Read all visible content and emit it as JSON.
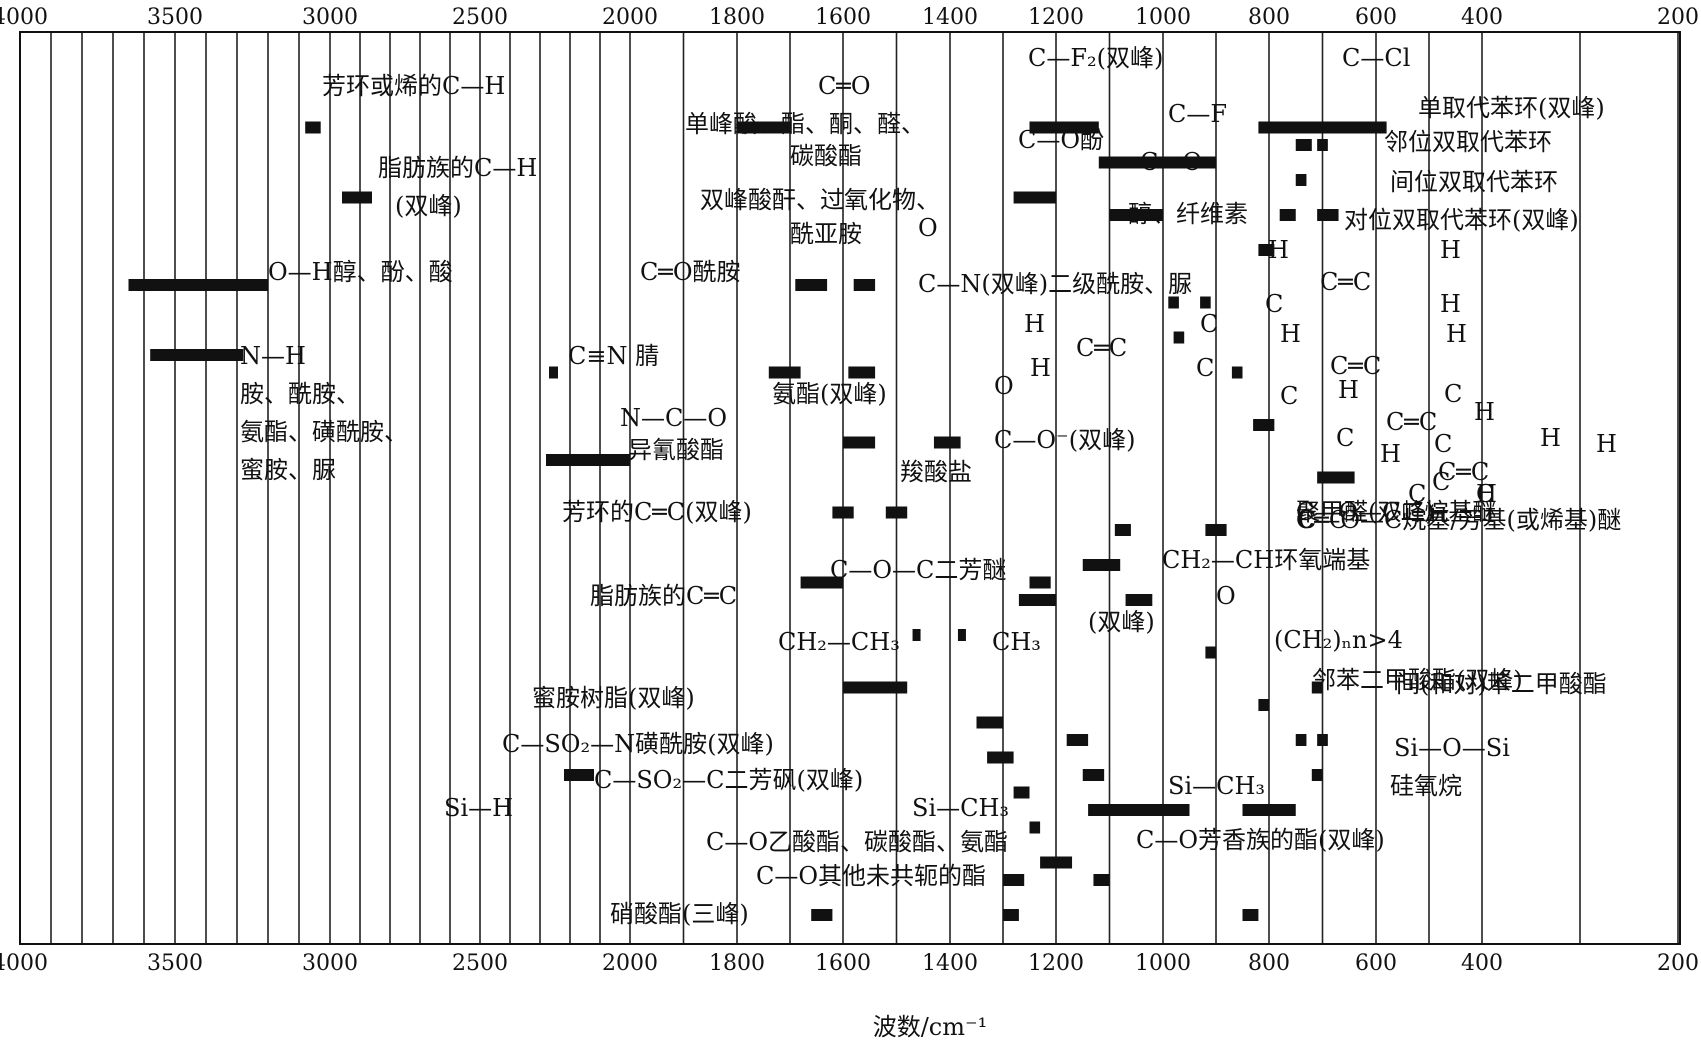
{
  "chart_data": {
    "type": "range-chart",
    "xlabel": "波数/cm⁻¹",
    "x_ticks": [
      4000,
      3500,
      3000,
      2500,
      2000,
      1800,
      1600,
      1400,
      1200,
      1000,
      800,
      600,
      400,
      200
    ],
    "grid": true,
    "bands": [
      {
        "x1": 3080,
        "x2": 3030,
        "r": 5
      },
      {
        "x1": 2960,
        "x2": 2860,
        "r": 9
      },
      {
        "x1": 3650,
        "x2": 3200,
        "r": 14
      },
      {
        "x1": 3580,
        "x2": 3280,
        "r": 18
      },
      {
        "x1": 2270,
        "x2": 2240,
        "r": 19
      },
      {
        "x1": 2280,
        "x2": 2000,
        "r": 24
      },
      {
        "x1": 2220,
        "x2": 2120,
        "r": 42
      },
      {
        "x1": 1800,
        "x2": 1700,
        "r": 5
      },
      {
        "x1": 1690,
        "x2": 1630,
        "r": 14
      },
      {
        "x1": 1580,
        "x2": 1540,
        "r": 14
      },
      {
        "x1": 1740,
        "x2": 1680,
        "r": 19
      },
      {
        "x1": 1590,
        "x2": 1540,
        "r": 19
      },
      {
        "x1": 1600,
        "x2": 1540,
        "r": 23
      },
      {
        "x1": 1430,
        "x2": 1380,
        "r": 23
      },
      {
        "x1": 1620,
        "x2": 1580,
        "r": 27
      },
      {
        "x1": 1520,
        "x2": 1480,
        "r": 27
      },
      {
        "x1": 1680,
        "x2": 1600,
        "r": 31
      },
      {
        "x1": 1470,
        "x2": 1460,
        "r": 34
      },
      {
        "x1": 1385,
        "x2": 1375,
        "r": 34
      },
      {
        "x1": 1600,
        "x2": 1480,
        "r": 37
      },
      {
        "x1": 1350,
        "x2": 1300,
        "r": 39
      },
      {
        "x1": 1330,
        "x2": 1280,
        "r": 41
      },
      {
        "x1": 1280,
        "x2": 1250,
        "r": 43
      },
      {
        "x1": 1250,
        "x2": 1230,
        "r": 45
      },
      {
        "x1": 1230,
        "x2": 1170,
        "r": 47
      },
      {
        "x1": 1300,
        "x2": 1260,
        "r": 48
      },
      {
        "x1": 1300,
        "x2": 1270,
        "r": 50
      },
      {
        "x1": 1660,
        "x2": 1620,
        "r": 50
      },
      {
        "x1": 1250,
        "x2": 1120,
        "r": 5
      },
      {
        "x1": 1280,
        "x2": 1200,
        "r": 9
      },
      {
        "x1": 1120,
        "x2": 900,
        "r": 7
      },
      {
        "x1": 1100,
        "x2": 1000,
        "r": 10
      },
      {
        "x1": 990,
        "x2": 970,
        "r": 15
      },
      {
        "x1": 930,
        "x2": 910,
        "r": 15
      },
      {
        "x1": 980,
        "x2": 960,
        "r": 17
      },
      {
        "x1": 1090,
        "x2": 1060,
        "r": 28
      },
      {
        "x1": 920,
        "x2": 880,
        "r": 28
      },
      {
        "x1": 1150,
        "x2": 1080,
        "r": 30
      },
      {
        "x1": 1250,
        "x2": 1210,
        "r": 31
      },
      {
        "x1": 1270,
        "x2": 1200,
        "r": 32
      },
      {
        "x1": 1070,
        "x2": 1020,
        "r": 32
      },
      {
        "x1": 920,
        "x2": 900,
        "r": 35
      },
      {
        "x1": 1180,
        "x2": 1140,
        "r": 40
      },
      {
        "x1": 1150,
        "x2": 1110,
        "r": 42
      },
      {
        "x1": 1140,
        "x2": 950,
        "r": 44
      },
      {
        "x1": 1130,
        "x2": 1100,
        "r": 48
      },
      {
        "x1": 820,
        "x2": 580,
        "r": 5
      },
      {
        "x1": 750,
        "x2": 720,
        "r": 6
      },
      {
        "x1": 710,
        "x2": 690,
        "r": 6
      },
      {
        "x1": 750,
        "x2": 730,
        "r": 8
      },
      {
        "x1": 780,
        "x2": 750,
        "r": 10
      },
      {
        "x1": 710,
        "x2": 670,
        "r": 10
      },
      {
        "x1": 820,
        "x2": 790,
        "r": 12
      },
      {
        "x1": 870,
        "x2": 850,
        "r": 19
      },
      {
        "x1": 830,
        "x2": 790,
        "r": 22
      },
      {
        "x1": 710,
        "x2": 640,
        "r": 25
      },
      {
        "x1": 720,
        "x2": 700,
        "r": 37
      },
      {
        "x1": 820,
        "x2": 800,
        "r": 38
      },
      {
        "x1": 750,
        "x2": 730,
        "r": 40
      },
      {
        "x1": 710,
        "x2": 690,
        "r": 40
      },
      {
        "x1": 720,
        "x2": 700,
        "r": 42
      },
      {
        "x1": 850,
        "x2": 750,
        "r": 44
      },
      {
        "x1": 850,
        "x2": 820,
        "r": 50
      }
    ]
  },
  "labels": [
    "芳环或烯的C—H",
    "脂肪族的C—H",
    "(双峰)",
    "O—H醇、酚、酸",
    "N—H",
    "胺、酰胺、",
    "氨酯、磺酰胺、",
    "蜜胺、脲",
    "C≡N 腈",
    "N—C—O",
    "异氰酸酯",
    "C═O",
    "单峰酸、酯、酮、醛、",
    "碳酸酯",
    "双峰酸酐、过氧化物、",
    "酰亚胺",
    "C═O酰胺",
    "O",
    "C—N(双峰)二级酰胺、脲",
    "氨酯(双峰)",
    "O",
    "C—O⁻(双峰)",
    "羧酸盐",
    "芳环的C═C(双峰)",
    "C—O—C二芳醚",
    "脂肪族的C═C",
    "(双峰)",
    "CH₂—CH₃",
    "CH₃",
    "蜜胺树脂(双峰)",
    "C—SO₂—N磺酰胺(双峰)",
    "C—SO₂—C二芳砜(双峰)",
    "Si—H",
    "Si—CH₃",
    "C—O乙酸酯、碳酸酯、氨酯",
    "C—O其他未共轭的酯",
    "硝酸酯(三峰)",
    "C—F₂(双峰)",
    "C—O酚",
    "C—F",
    "C—O",
    "醇、纤维素",
    "C—Cl",
    "单取代苯环(双峰)",
    "邻位双取代苯环",
    "间位双取代苯环",
    "对位双取代苯环(双峰)",
    "H",
    "C═C",
    "H",
    "C",
    "H",
    "H",
    "C═C",
    "C",
    "H",
    "C",
    "H",
    "C═C",
    "H",
    "C",
    "C",
    "H",
    "C═C",
    "C",
    "H",
    "C",
    "H",
    "C═C",
    "H",
    "C",
    "C",
    "H",
    "C═C",
    "C",
    "H",
    "C",
    "聚甲醛(双峰)",
    "C—O—C二烷基醚",
    "C—O—C烷基/芳基(或烯基)醚",
    "CH₂—CH环氧端基",
    "O",
    "(CH₂)ₙn>4",
    "邻苯二甲酸酯(双峰)",
    "间(和对)苯二甲酸酯",
    "Si—O—Si",
    "硅氧烷",
    "Si—CH₃",
    "C—O芳香族的酯(双峰)"
  ]
}
